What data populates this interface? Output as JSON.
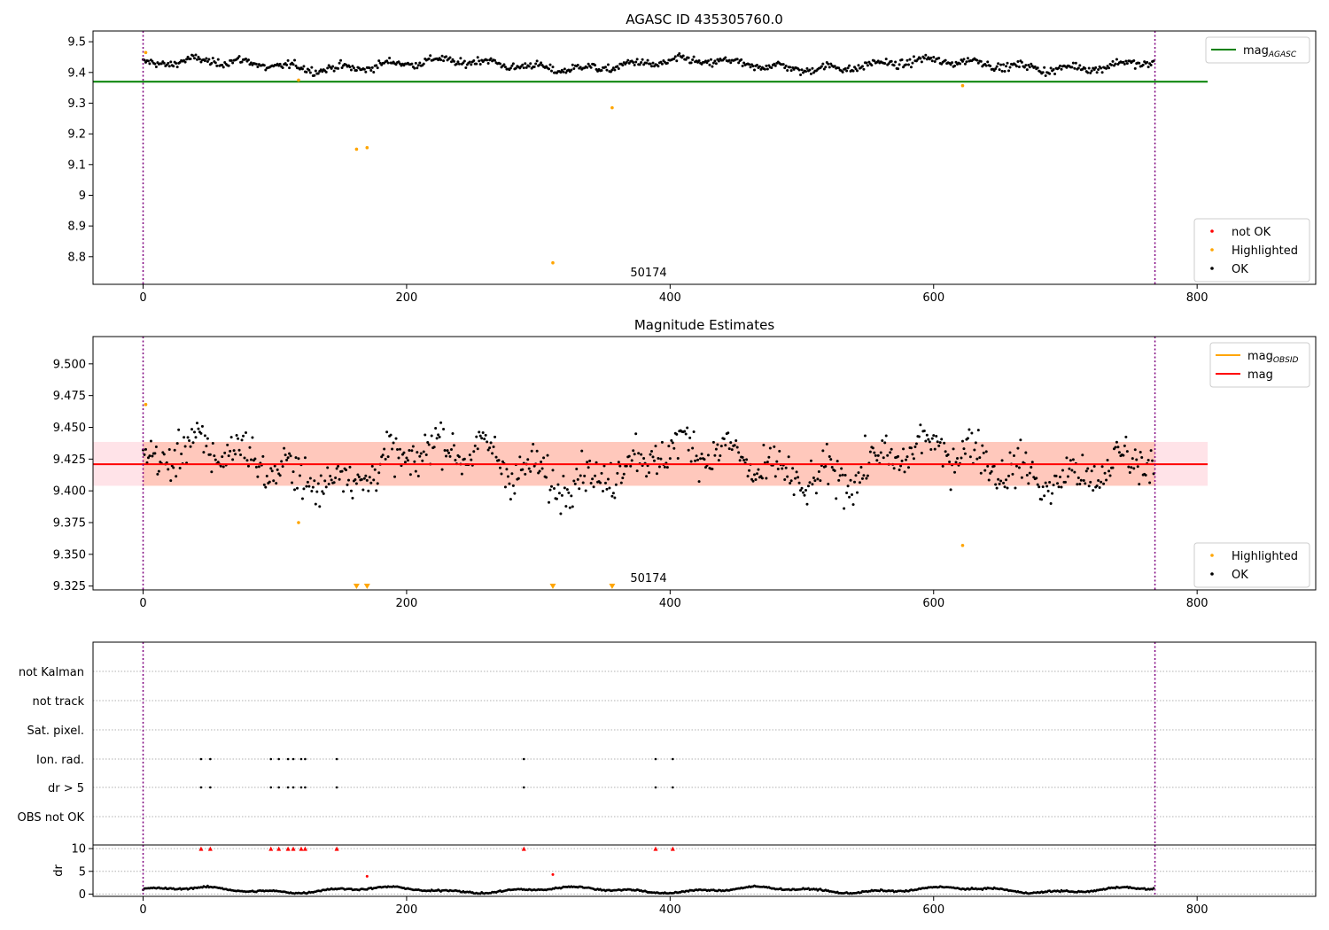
{
  "chart_data": [
    {
      "type": "scatter",
      "title": "AGASC ID 435305760.0",
      "xlim": [
        -38,
        890
      ],
      "ylim": [
        8.71,
        9.535
      ],
      "xticks": [
        0,
        200,
        400,
        600,
        800
      ],
      "yticks": [
        8.8,
        8.9,
        9.0,
        9.1,
        9.2,
        9.3,
        9.4,
        9.5
      ],
      "obsid_label": "50174",
      "obsid_label_x": 370,
      "vlines_x": [
        0,
        768
      ],
      "hline": {
        "name": "mag_AGASC",
        "y": 9.37,
        "color": "#008000",
        "x_range": [
          -38,
          808
        ]
      },
      "legend_top": [
        {
          "label": "mag",
          "sub": "AGASC",
          "color": "#008000",
          "kind": "line"
        }
      ],
      "legend_bottom": [
        {
          "label": "not OK",
          "color": "#ff0000",
          "kind": "dot"
        },
        {
          "label": "Highlighted",
          "color": "#ffa500",
          "kind": "dot"
        },
        {
          "label": "OK",
          "color": "#000000",
          "kind": "dot"
        }
      ],
      "ok_series": {
        "color": "#000000",
        "n": 768,
        "base": 9.425,
        "amp": 0.022,
        "period": 185,
        "noise": 0.009
      },
      "highlighted": [
        {
          "x": 2,
          "y": 9.465
        },
        {
          "x": 118,
          "y": 9.375
        },
        {
          "x": 162,
          "y": 9.15
        },
        {
          "x": 170,
          "y": 9.155
        },
        {
          "x": 311,
          "y": 8.78
        },
        {
          "x": 356,
          "y": 9.285
        },
        {
          "x": 622,
          "y": 9.357
        }
      ]
    },
    {
      "type": "scatter",
      "title": "Magnitude Estimates",
      "xlim": [
        -38,
        890
      ],
      "ylim": [
        9.322,
        9.5215
      ],
      "xticks": [
        0,
        200,
        400,
        600,
        800
      ],
      "yticks": [
        9.325,
        9.35,
        9.375,
        9.4,
        9.425,
        9.45,
        9.475,
        9.5
      ],
      "ytick_labels": [
        "9.325",
        "9.350",
        "9.375",
        "9.400",
        "9.425",
        "9.450",
        "9.475",
        "9.500"
      ],
      "obsid_label": "50174",
      "obsid_label_x": 370,
      "vlines_x": [
        0,
        768
      ],
      "mag": {
        "y": 9.421,
        "color": "#ff0000",
        "x_range": [
          -38,
          808
        ]
      },
      "mag_obsid": {
        "y": 9.421,
        "color": "#ffa500",
        "x_range": [
          0,
          768
        ]
      },
      "band": {
        "y_low": 9.404,
        "y_high": 9.4385,
        "color_outer": "#ffc0cb",
        "color_inner": "#ffa07a",
        "x_range": [
          -38,
          808
        ]
      },
      "legend_top": [
        {
          "label": "mag",
          "sub": "OBSID",
          "color": "#ffa500",
          "kind": "line"
        },
        {
          "label": "mag",
          "sub": "",
          "color": "#ff0000",
          "kind": "line"
        }
      ],
      "legend_bottom": [
        {
          "label": "Highlighted",
          "color": "#ffa500",
          "kind": "dot"
        },
        {
          "label": "OK",
          "color": "#000000",
          "kind": "dot"
        }
      ],
      "ok_series": {
        "color": "#000000",
        "n": 768,
        "base": 9.421,
        "amp": 0.022,
        "period": 185,
        "noise": 0.011
      },
      "highlighted": [
        {
          "x": 2,
          "y": 9.468
        },
        {
          "x": 118,
          "y": 9.375
        },
        {
          "x": 622,
          "y": 9.357
        }
      ],
      "clipped_low": [
        {
          "x": 162
        },
        {
          "x": 170
        },
        {
          "x": 311
        },
        {
          "x": 356
        }
      ]
    },
    {
      "type": "scatter",
      "title": "",
      "xlim": [
        -38,
        890
      ],
      "flag_rows": [
        "not Kalman",
        "not track",
        "Sat. pixel.",
        "Ion. rad.",
        "dr > 5",
        "OBS not OK"
      ],
      "flags": {
        "Ion. rad.": [
          44,
          51,
          97,
          103,
          110,
          114,
          120,
          123,
          147,
          289,
          389,
          402
        ],
        "dr > 5": [
          44,
          51,
          97,
          103,
          110,
          114,
          120,
          123,
          147,
          289,
          389,
          402
        ]
      },
      "vlines_x": [
        0,
        768
      ]
    },
    {
      "type": "scatter",
      "ylabel": "dr",
      "xlim": [
        -38,
        890
      ],
      "ylim": [
        -0.5,
        10.8
      ],
      "xticks": [
        0,
        200,
        400,
        600,
        800
      ],
      "yticks": [
        0,
        5,
        10
      ],
      "vlines_x": [
        0,
        768
      ],
      "clipped_high": [
        44,
        51,
        97,
        103,
        110,
        114,
        120,
        123,
        147,
        289,
        389,
        402
      ],
      "red_points": [
        {
          "x": 170,
          "y": 3.9
        },
        {
          "x": 311,
          "y": 4.3
        }
      ],
      "ok_series": {
        "n": 768
      }
    }
  ]
}
